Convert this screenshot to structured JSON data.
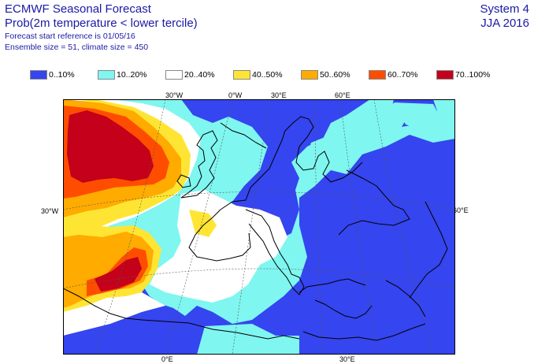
{
  "header": {
    "title_line1": "ECMWF Seasonal Forecast",
    "title_line2": "Prob(2m temperature < lower tercile)",
    "forecast_start": "Forecast start reference is 01/05/16",
    "ensemble": "Ensemble size = 51, climate size = 450",
    "system": "System 4",
    "season": "JJA 2016"
  },
  "legend": [
    {
      "label": "0..10%",
      "color": "#3545ef"
    },
    {
      "label": "10..20%",
      "color": "#7ff6f0"
    },
    {
      "label": "20..40%",
      "color": "#ffffff"
    },
    {
      "label": "40..50%",
      "color": "#ffe533"
    },
    {
      "label": "50..60%",
      "color": "#ffab00"
    },
    {
      "label": "60..70%",
      "color": "#ff4d00"
    },
    {
      "label": "70..100%",
      "color": "#c4001a"
    }
  ],
  "graticule_labels": {
    "top": [
      "30°W",
      "0°W",
      "30°E",
      "60°E"
    ],
    "left": [
      "30°W"
    ],
    "right": [
      "60°E"
    ],
    "bottom": [
      "0°E",
      "30°E"
    ]
  }
}
